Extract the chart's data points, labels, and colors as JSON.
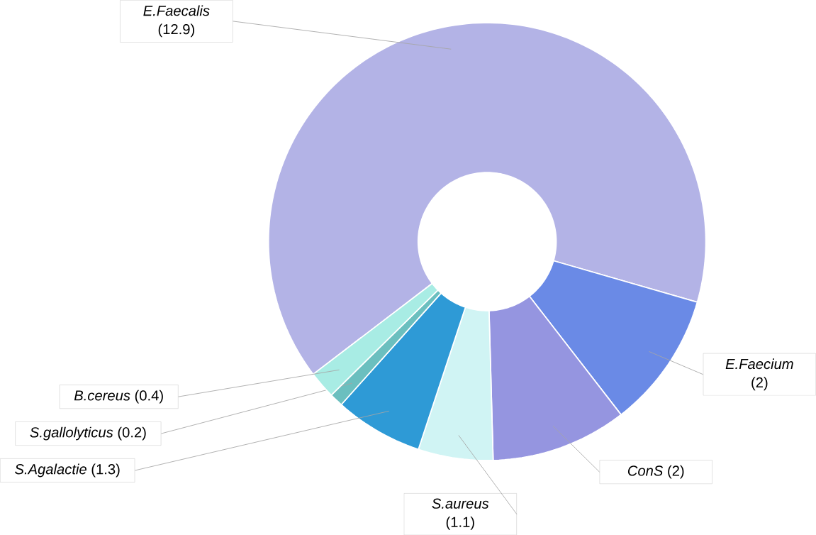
{
  "chart_data": {
    "type": "donut",
    "categories": [
      "E.Faecalis",
      "E.Faecium",
      "ConS",
      "S.aureus",
      "S.Agalactie",
      "S.gallolyticus",
      "B.cereus"
    ],
    "values": [
      12.9,
      2,
      2,
      1.1,
      1.3,
      0.2,
      0.4
    ],
    "colors": [
      "#b3b3e6",
      "#6a8ae6",
      "#9595e0",
      "#d0f4f4",
      "#2e9ad6",
      "#6bbfbf",
      "#a8ece4"
    ],
    "value_labels": [
      "(12.9)",
      "(2)",
      "(2)",
      "(1.1)",
      "(1.3)",
      "(0.2)",
      "(0.4)"
    ]
  }
}
